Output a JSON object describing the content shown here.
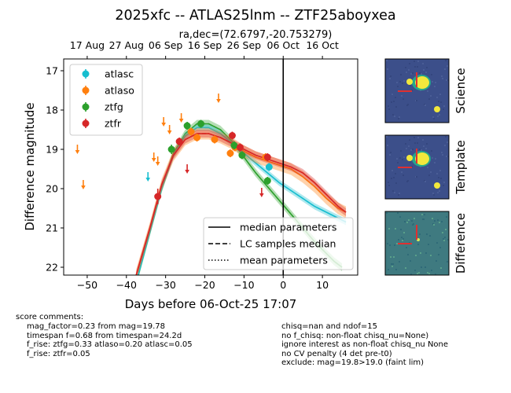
{
  "chart_data": {
    "type": "scatter",
    "title": "2025xfc -- ATLAS25lnm -- ZTF25aboyxea",
    "subtitle": "ra,dec=(72.6797,-20.753279)",
    "xlabel": "Days before 06-Oct-25 17:07",
    "ylabel": "Difference magnitude",
    "xlim": [
      -56,
      19
    ],
    "ylim": [
      22.2,
      16.7
    ],
    "y_inverted": true,
    "x_ticks": [
      -50,
      -40,
      -30,
      -20,
      -10,
      0,
      10
    ],
    "x_tick_labels": [
      "−50",
      "−40",
      "−30",
      "−20",
      "−10",
      "0",
      "10"
    ],
    "y_ticks": [
      17,
      18,
      19,
      20,
      21,
      22
    ],
    "top_axis_ticks": [
      {
        "x": -50.0,
        "label": "17 Aug"
      },
      {
        "x": -40.0,
        "label": "27 Aug"
      },
      {
        "x": -30.0,
        "label": "06 Sep"
      },
      {
        "x": -20.0,
        "label": "16 Sep"
      },
      {
        "x": -10.0,
        "label": "26 Sep"
      },
      {
        "x": 0.0,
        "label": "06 Oct"
      },
      {
        "x": 10.0,
        "label": "16 Oct"
      }
    ],
    "vline_x": 0,
    "legend_placement": "upper-left",
    "series": [
      {
        "name": "atlasc",
        "color": "#17becf",
        "points": [
          {
            "x": -3.6,
            "y": 19.45,
            "err": 0.08
          }
        ],
        "upper_limits": [
          {
            "x": -34.5,
            "y": 19.7
          }
        ]
      },
      {
        "name": "atlaso",
        "color": "#ff7f0e",
        "points": [
          {
            "x": -23.5,
            "y": 18.55,
            "err": 0.06
          },
          {
            "x": -22.0,
            "y": 18.7,
            "err": 0.06
          },
          {
            "x": -17.5,
            "y": 18.75,
            "err": 0.06
          },
          {
            "x": -13.5,
            "y": 19.1,
            "err": 0.06
          },
          {
            "x": -12.3,
            "y": 18.95,
            "err": 0.06
          },
          {
            "x": -4.5,
            "y": 19.2,
            "err": 0.06
          }
        ],
        "upper_limits": [
          {
            "x": -52.5,
            "y": 19.0
          },
          {
            "x": -51.0,
            "y": 19.9
          },
          {
            "x": -33.0,
            "y": 19.2
          },
          {
            "x": -32.0,
            "y": 19.3
          },
          {
            "x": -30.5,
            "y": 18.3
          },
          {
            "x": -29.0,
            "y": 18.5
          },
          {
            "x": -26.0,
            "y": 18.2
          },
          {
            "x": -16.5,
            "y": 17.7
          }
        ]
      },
      {
        "name": "ztfg",
        "color": "#2ca02c",
        "points": [
          {
            "x": -28.5,
            "y": 19.0,
            "err": 0.12
          },
          {
            "x": -24.5,
            "y": 18.4,
            "err": 0.05
          },
          {
            "x": -21.0,
            "y": 18.35,
            "err": 0.04
          },
          {
            "x": -12.5,
            "y": 18.9,
            "err": 0.05
          },
          {
            "x": -10.5,
            "y": 19.15,
            "err": 0.05
          },
          {
            "x": -4.0,
            "y": 19.8,
            "err": 0.08
          }
        ],
        "upper_limits": []
      },
      {
        "name": "ztfr",
        "color": "#d62728",
        "points": [
          {
            "x": -32.0,
            "y": 20.2,
            "err": 0.2
          },
          {
            "x": -26.5,
            "y": 18.8,
            "err": 0.1
          },
          {
            "x": -13.0,
            "y": 18.65,
            "err": 0.04
          },
          {
            "x": -11.0,
            "y": 18.95,
            "err": 0.05
          },
          {
            "x": -4.0,
            "y": 19.2,
            "err": 0.06
          }
        ],
        "upper_limits": [
          {
            "x": -24.5,
            "y": 19.5
          },
          {
            "x": -5.5,
            "y": 20.1
          }
        ]
      }
    ],
    "model_curves": [
      {
        "name": "ztfg",
        "color": "#2ca02c",
        "x": [
          -37.0,
          -34.0,
          -31.0,
          -28.0,
          -25.0,
          -22.0,
          -19.0,
          -16.0,
          -13.0,
          -10.0,
          -7.0,
          -4.0,
          -1.0,
          2.0,
          5.0,
          8.0,
          11.0,
          13.0,
          15.0
        ],
        "y": [
          22.2,
          21.1,
          20.0,
          19.1,
          18.6,
          18.35,
          18.35,
          18.5,
          18.8,
          19.2,
          19.6,
          19.95,
          20.3,
          20.65,
          21.0,
          21.35,
          21.65,
          21.85,
          22.0
        ],
        "band": 0.1
      },
      {
        "name": "atlasc",
        "color": "#17becf",
        "x": [
          -37.0,
          -34.0,
          -31.0,
          -28.0,
          -25.0,
          -22.0,
          -19.0,
          -16.0,
          -13.0,
          -10.0,
          -7.0,
          -4.0,
          -1.0,
          2.0,
          5.0,
          8.0,
          11.0,
          14.0,
          16.0
        ],
        "y": [
          22.2,
          21.1,
          20.0,
          19.15,
          18.65,
          18.45,
          18.45,
          18.6,
          18.85,
          19.1,
          19.35,
          19.6,
          19.85,
          20.05,
          20.25,
          20.45,
          20.6,
          20.75,
          20.85
        ],
        "band": 0.08
      },
      {
        "name": "atlaso",
        "color": "#ff7f0e",
        "x": [
          -37.5,
          -34.0,
          -31.0,
          -28.0,
          -25.0,
          -22.0,
          -19.0,
          -16.0,
          -13.0,
          -10.0,
          -7.0,
          -4.0,
          -1.0,
          2.0,
          5.0,
          8.0,
          11.0,
          14.0,
          16.0
        ],
        "y": [
          22.2,
          21.0,
          19.9,
          19.15,
          18.75,
          18.6,
          18.6,
          18.7,
          18.85,
          19.05,
          19.2,
          19.3,
          19.4,
          19.5,
          19.7,
          19.95,
          20.25,
          20.5,
          20.6
        ],
        "band": 0.15
      },
      {
        "name": "ztfr",
        "color": "#d62728",
        "x": [
          -37.5,
          -34.0,
          -31.0,
          -28.0,
          -25.0,
          -22.0,
          -19.0,
          -16.0,
          -13.0,
          -10.0,
          -7.0,
          -4.0,
          -1.0,
          2.0,
          5.0,
          8.0,
          11.0,
          14.0,
          16.0
        ],
        "y": [
          22.2,
          21.0,
          19.9,
          19.15,
          18.75,
          18.6,
          18.6,
          18.7,
          18.85,
          19.0,
          19.15,
          19.25,
          19.35,
          19.45,
          19.6,
          19.85,
          20.15,
          20.45,
          20.6
        ],
        "band": 0.1
      }
    ],
    "line_legend": [
      {
        "style": "solid",
        "label": "median parameters"
      },
      {
        "style": "dashed",
        "label": "LC samples median"
      },
      {
        "style": "dotted",
        "label": "mean parameters"
      }
    ],
    "stamps": [
      {
        "label": "Science",
        "kind": "science"
      },
      {
        "label": "Template",
        "kind": "template"
      },
      {
        "label": "Difference",
        "kind": "difference"
      }
    ]
  },
  "comments": {
    "heading": "score comments:",
    "left": [
      "mag_factor=0.23 from mag=19.78",
      "timespan f=0.68 from timespan=24.2d",
      "f_rise: ztfg=0.33 atlaso=0.20 atlasc=0.05",
      "f_rise: ztfr=0.05"
    ],
    "right": [
      "chisq=nan and ndof=15",
      "no f_chisq: non-float chisq_nu=None)",
      "ignore interest as non-float chisq_nu None",
      "no CV penalty (4 det pre-t0)",
      "exclude: mag=19.8>19.0 (faint lim)"
    ]
  }
}
